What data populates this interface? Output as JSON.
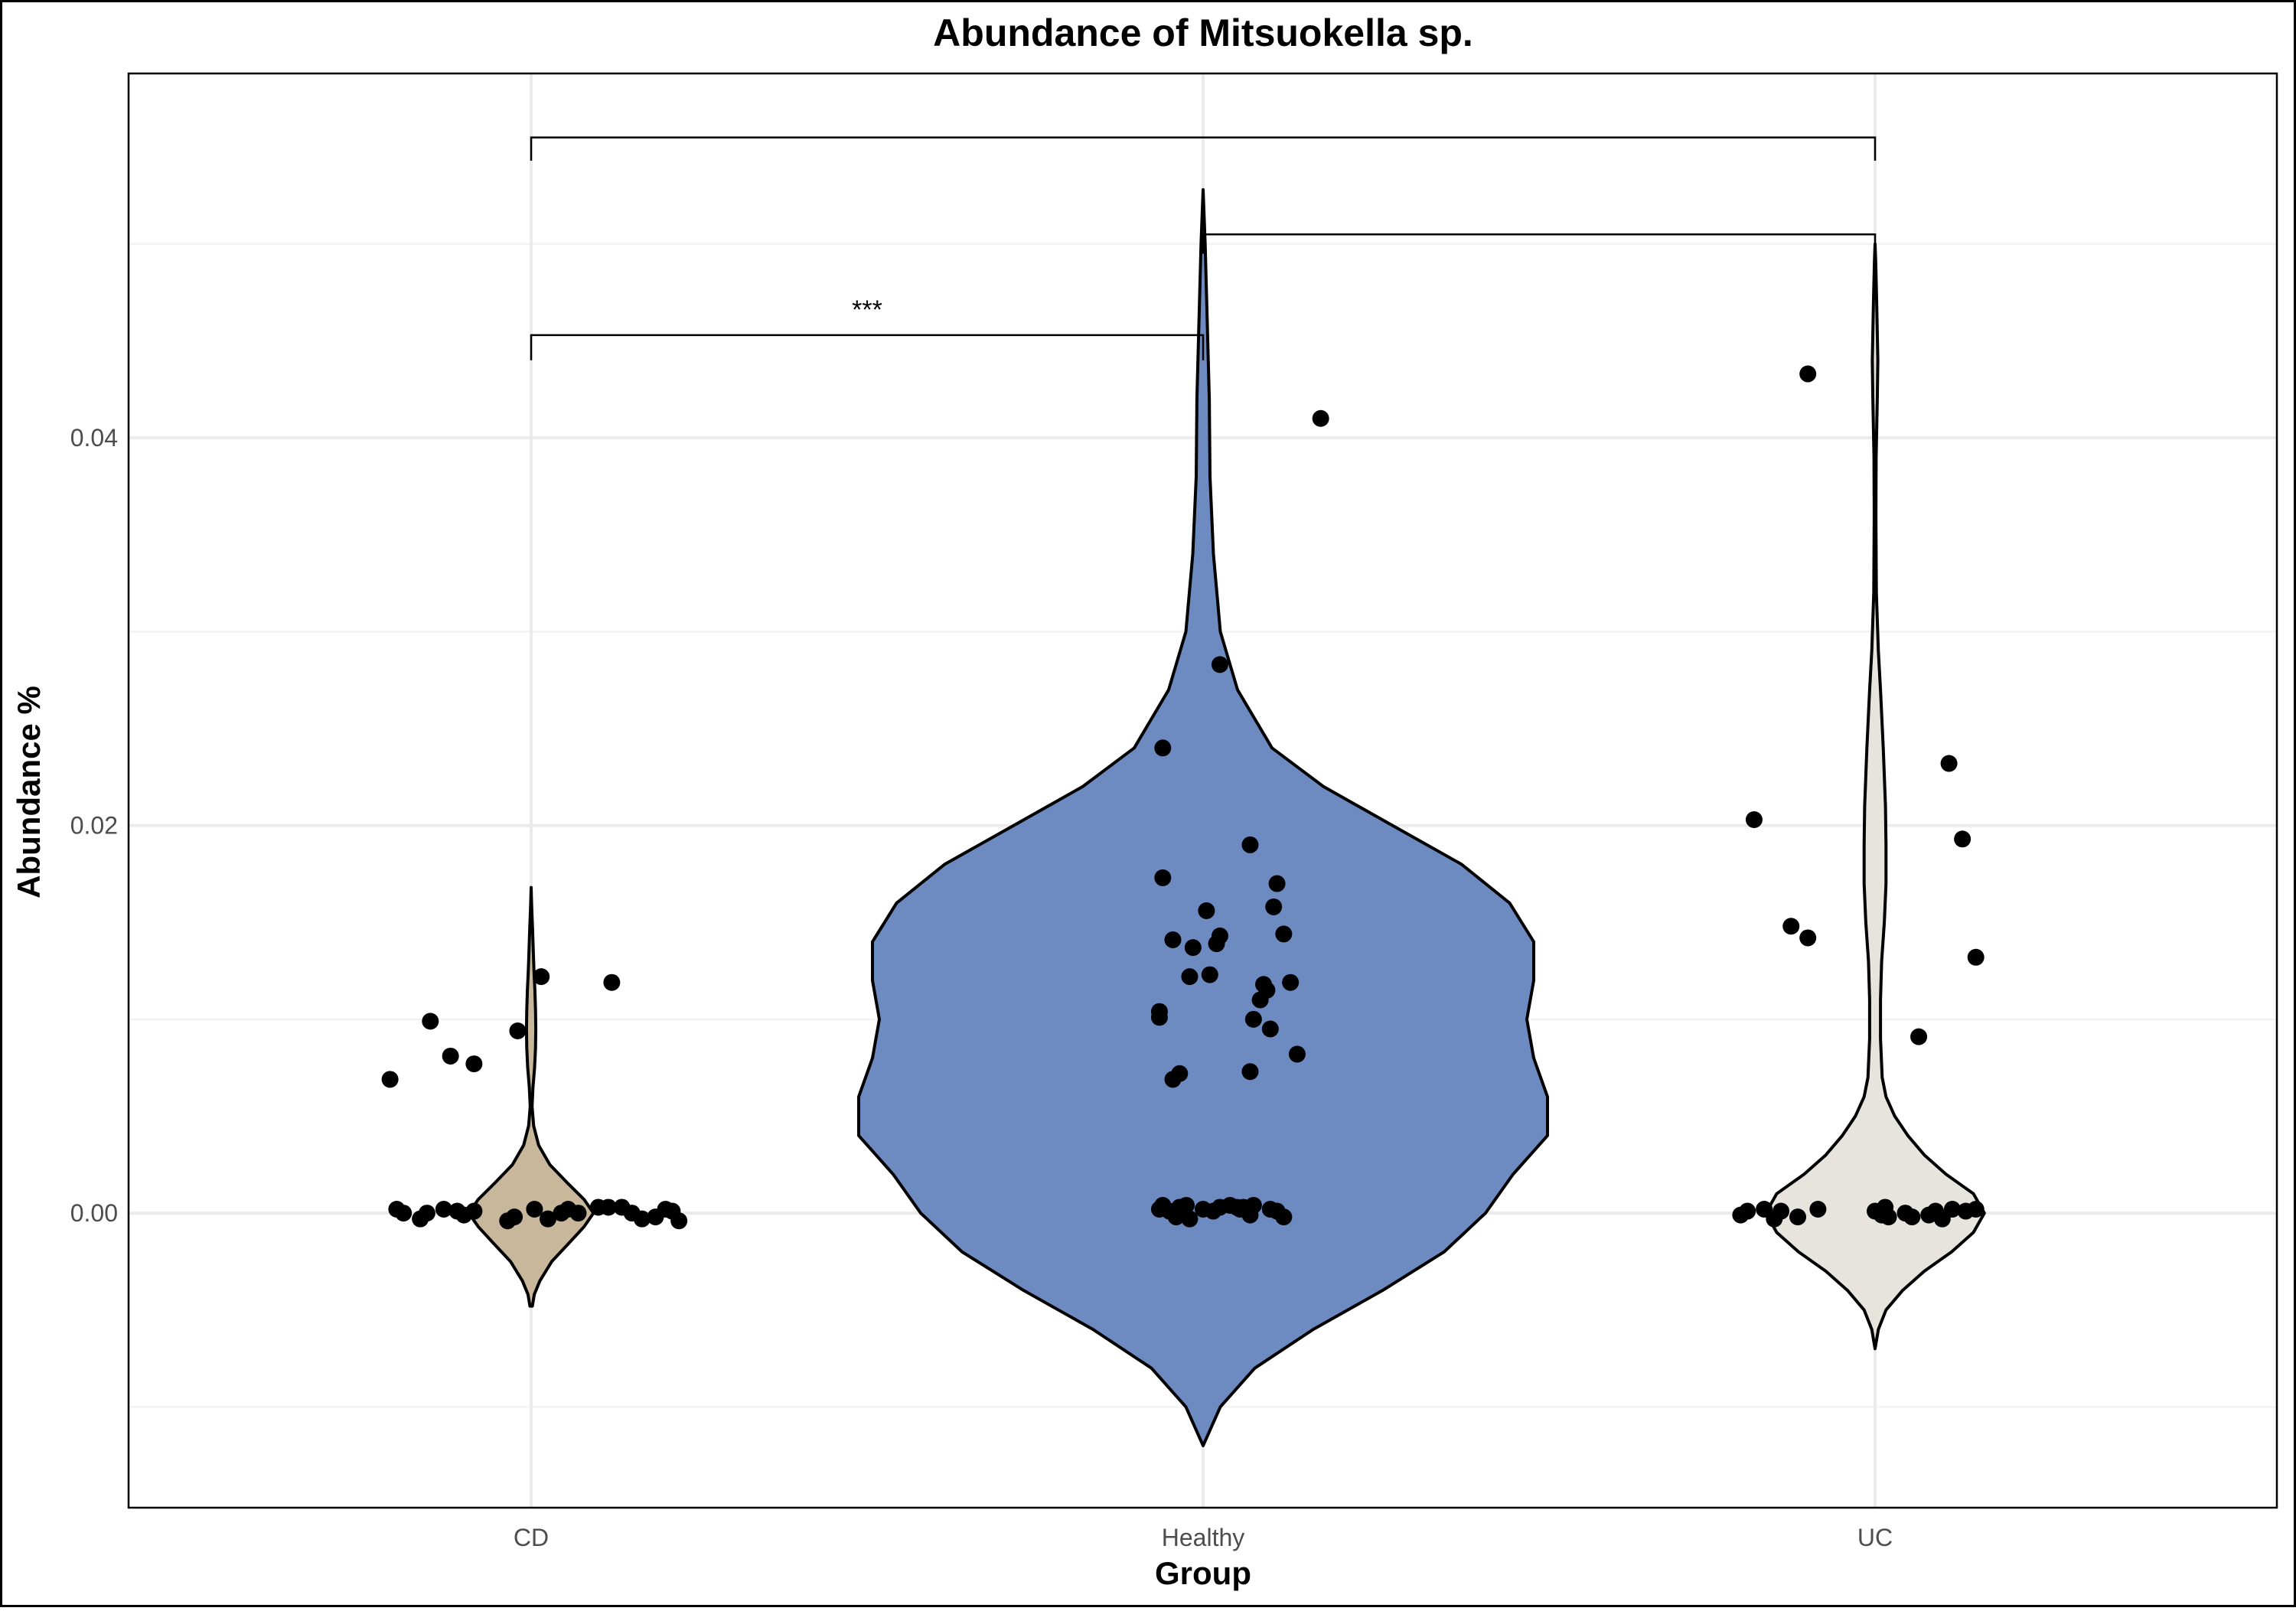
{
  "chart_data": {
    "type": "violin",
    "title": "Abundance of Mitsuokella sp.",
    "xlabel": "Group",
    "ylabel": "Abundance %",
    "ylim": [
      -0.0152,
      0.0588
    ],
    "yticks": [
      0.0,
      0.02,
      0.04
    ],
    "ytick_labels": [
      "0.00",
      "0.02",
      "0.04"
    ],
    "categories": [
      "CD",
      "Healthy",
      "UC"
    ],
    "grid": true,
    "legend": "none",
    "groups": [
      {
        "name": "CD",
        "color": "#C8B79A",
        "violin_range": [
          -0.0048,
          0.0168
        ],
        "density": [
          [
            -0.0048,
            0.02
          ],
          [
            -0.0042,
            0.05
          ],
          [
            -0.0035,
            0.14
          ],
          [
            -0.0025,
            0.33
          ],
          [
            -0.0015,
            0.62
          ],
          [
            -0.0007,
            0.85
          ],
          [
            0.0,
            1.0
          ],
          [
            0.0007,
            0.85
          ],
          [
            0.0015,
            0.6
          ],
          [
            0.0025,
            0.3
          ],
          [
            0.0035,
            0.12
          ],
          [
            0.0045,
            0.04
          ],
          [
            0.0055,
            0.015
          ],
          [
            0.0065,
            0.03
          ],
          [
            0.0075,
            0.055
          ],
          [
            0.0085,
            0.07
          ],
          [
            0.0095,
            0.075
          ],
          [
            0.0105,
            0.07
          ],
          [
            0.0115,
            0.06
          ],
          [
            0.0125,
            0.045
          ],
          [
            0.0135,
            0.035
          ],
          [
            0.0145,
            0.025
          ],
          [
            0.0155,
            0.012
          ],
          [
            0.0162,
            0.005
          ],
          [
            0.0168,
            0.0
          ]
        ],
        "points": [
          [
            -0.42,
            0.0069
          ],
          [
            -0.3,
            0.0099
          ],
          [
            -0.24,
            0.0081
          ],
          [
            -0.17,
            0.0077
          ],
          [
            -0.04,
            0.0094
          ],
          [
            0.03,
            0.0122
          ],
          [
            0.24,
            0.0119
          ],
          [
            -0.4,
            0.0002
          ],
          [
            -0.38,
            0.0
          ],
          [
            -0.33,
            -0.0003
          ],
          [
            -0.31,
            0.0
          ],
          [
            -0.26,
            0.0002
          ],
          [
            -0.22,
            0.0001
          ],
          [
            -0.2,
            -0.0001
          ],
          [
            -0.17,
            0.0001
          ],
          [
            -0.07,
            -0.0004
          ],
          [
            -0.05,
            -0.0002
          ],
          [
            0.01,
            0.0002
          ],
          [
            0.05,
            -0.0003
          ],
          [
            0.09,
            0.0
          ],
          [
            0.11,
            0.0002
          ],
          [
            0.14,
            0.0
          ],
          [
            0.2,
            0.0003
          ],
          [
            0.23,
            0.0003
          ],
          [
            0.27,
            0.0003
          ],
          [
            0.3,
            0.0
          ],
          [
            0.33,
            -0.0003
          ],
          [
            0.37,
            -0.0002
          ],
          [
            0.4,
            0.0002
          ],
          [
            0.42,
            0.0001
          ],
          [
            0.44,
            -0.0004
          ]
        ]
      },
      {
        "name": "Healthy",
        "color": "#6D8BC1",
        "violin_range": [
          -0.012,
          0.0528
        ],
        "density": [
          [
            -0.012,
            0.0
          ],
          [
            -0.01,
            0.05
          ],
          [
            -0.008,
            0.15
          ],
          [
            -0.006,
            0.32
          ],
          [
            -0.004,
            0.52
          ],
          [
            -0.002,
            0.7
          ],
          [
            0.0,
            0.82
          ],
          [
            0.002,
            0.9
          ],
          [
            0.004,
            1.0
          ],
          [
            0.006,
            1.0
          ],
          [
            0.008,
            0.96
          ],
          [
            0.01,
            0.94
          ],
          [
            0.012,
            0.96
          ],
          [
            0.014,
            0.96
          ],
          [
            0.016,
            0.89
          ],
          [
            0.018,
            0.75
          ],
          [
            0.02,
            0.55
          ],
          [
            0.022,
            0.35
          ],
          [
            0.024,
            0.2
          ],
          [
            0.027,
            0.1
          ],
          [
            0.03,
            0.05
          ],
          [
            0.034,
            0.03
          ],
          [
            0.038,
            0.02
          ],
          [
            0.042,
            0.018
          ],
          [
            0.046,
            0.012
          ],
          [
            0.05,
            0.006
          ],
          [
            0.0528,
            0.0
          ]
        ],
        "points": [
          [
            -0.12,
            0.024
          ],
          [
            0.05,
            0.0283
          ],
          [
            -0.12,
            0.0173
          ],
          [
            0.14,
            0.019
          ],
          [
            -0.13,
            0.0104
          ],
          [
            -0.13,
            0.0101
          ],
          [
            -0.07,
            0.0072
          ],
          [
            -0.04,
            0.0122
          ],
          [
            -0.03,
            0.0137
          ],
          [
            0.01,
            0.0156
          ],
          [
            0.05,
            0.0143
          ],
          [
            -0.09,
            0.0141
          ],
          [
            0.04,
            0.0139
          ],
          [
            0.02,
            0.0123
          ],
          [
            -0.09,
            0.0069
          ],
          [
            0.15,
            0.01
          ],
          [
            0.17,
            0.011
          ],
          [
            0.14,
            0.0073
          ],
          [
            0.18,
            0.0118
          ],
          [
            0.19,
            0.0115
          ],
          [
            0.2,
            0.0095
          ],
          [
            0.21,
            0.0158
          ],
          [
            0.22,
            0.017
          ],
          [
            0.24,
            0.0144
          ],
          [
            0.26,
            0.0119
          ],
          [
            0.28,
            0.0082
          ],
          [
            0.35,
            0.041
          ],
          [
            -0.13,
            0.0002
          ],
          [
            -0.12,
            0.0004
          ],
          [
            -0.1,
            0.0001
          ],
          [
            -0.08,
            -0.0002
          ],
          [
            -0.07,
            0.0003
          ],
          [
            -0.05,
            0.0004
          ],
          [
            -0.04,
            -0.0003
          ],
          [
            0.0,
            0.0002
          ],
          [
            0.03,
            0.0001
          ],
          [
            0.05,
            0.0003
          ],
          [
            0.08,
            0.0004
          ],
          [
            0.1,
            0.0003
          ],
          [
            0.11,
            0.0002
          ],
          [
            0.12,
            0.0003
          ],
          [
            0.14,
            -0.0001
          ],
          [
            0.15,
            0.0004
          ],
          [
            0.2,
            0.0002
          ],
          [
            0.22,
            0.0001
          ],
          [
            0.24,
            -0.0002
          ]
        ]
      },
      {
        "name": "UC",
        "color": "#E7E4DD",
        "violin_range": [
          -0.007,
          0.05
        ],
        "density": [
          [
            -0.007,
            0.0
          ],
          [
            -0.006,
            0.03
          ],
          [
            -0.005,
            0.1
          ],
          [
            -0.004,
            0.25
          ],
          [
            -0.003,
            0.45
          ],
          [
            -0.002,
            0.7
          ],
          [
            -0.001,
            0.9
          ],
          [
            0.0,
            1.0
          ],
          [
            0.001,
            0.9
          ],
          [
            0.002,
            0.65
          ],
          [
            0.003,
            0.45
          ],
          [
            0.004,
            0.3
          ],
          [
            0.005,
            0.18
          ],
          [
            0.006,
            0.1
          ],
          [
            0.007,
            0.065
          ],
          [
            0.009,
            0.05
          ],
          [
            0.011,
            0.05
          ],
          [
            0.013,
            0.06
          ],
          [
            0.015,
            0.085
          ],
          [
            0.017,
            0.1
          ],
          [
            0.019,
            0.1
          ],
          [
            0.021,
            0.095
          ],
          [
            0.024,
            0.075
          ],
          [
            0.027,
            0.05
          ],
          [
            0.029,
            0.03
          ],
          [
            0.032,
            0.012
          ],
          [
            0.036,
            0.008
          ],
          [
            0.039,
            0.01
          ],
          [
            0.042,
            0.02
          ],
          [
            0.044,
            0.025
          ],
          [
            0.047,
            0.015
          ],
          [
            0.049,
            0.006
          ],
          [
            0.05,
            0.0
          ]
        ],
        "points": [
          [
            -0.36,
            0.0203
          ],
          [
            -0.25,
            0.0148
          ],
          [
            -0.2,
            0.0142
          ],
          [
            -0.2,
            0.0433
          ],
          [
            0.13,
            0.0091
          ],
          [
            0.22,
            0.0232
          ],
          [
            0.26,
            0.0193
          ],
          [
            0.3,
            0.0132
          ],
          [
            -0.4,
            -0.0001
          ],
          [
            -0.38,
            0.0001
          ],
          [
            -0.33,
            0.0002
          ],
          [
            -0.3,
            -0.0003
          ],
          [
            -0.28,
            0.0001
          ],
          [
            -0.23,
            -0.0002
          ],
          [
            -0.17,
            0.0002
          ],
          [
            0.0,
            0.0001
          ],
          [
            0.02,
            -0.0001
          ],
          [
            0.03,
            0.0003
          ],
          [
            0.04,
            -0.0002
          ],
          [
            0.09,
            0.0
          ],
          [
            0.11,
            -0.0002
          ],
          [
            0.16,
            -0.0001
          ],
          [
            0.18,
            0.0001
          ],
          [
            0.2,
            -0.0003
          ],
          [
            0.23,
            0.0002
          ],
          [
            0.27,
            0.0001
          ],
          [
            0.3,
            0.0002
          ]
        ]
      }
    ],
    "comparisons": [
      {
        "groups": [
          "CD",
          "Healthy"
        ],
        "label": "***",
        "y": 0.0453,
        "tip_bottom": 0.044
      },
      {
        "groups": [
          "Healthy",
          "UC"
        ],
        "label": "",
        "y": 0.0505,
        "tip_bottom": 0.0495
      },
      {
        "groups": [
          "CD",
          "UC"
        ],
        "label": "",
        "y": 0.0555,
        "tip_bottom": 0.0543
      }
    ]
  }
}
